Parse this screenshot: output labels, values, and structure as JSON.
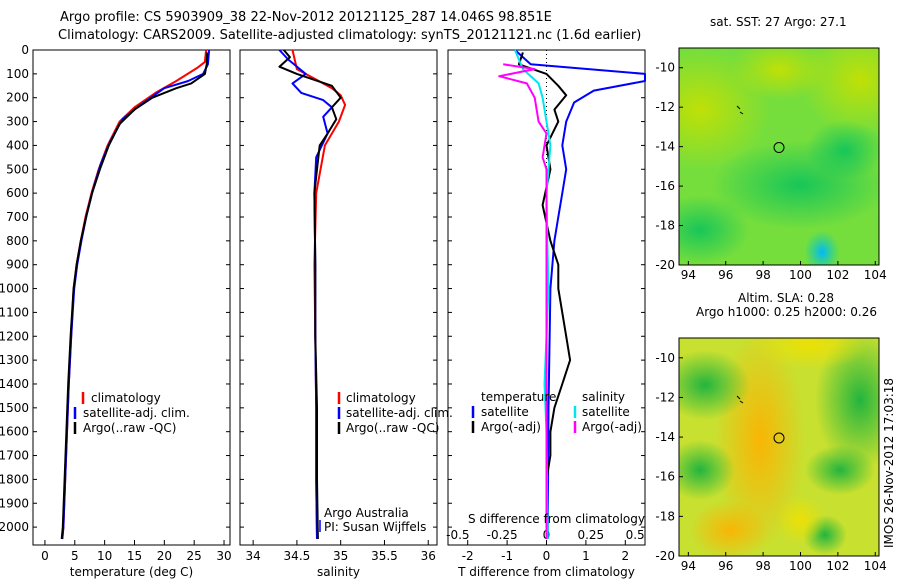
{
  "header": {
    "line1": "Argo profile: CS 5903909_38 22-Nov-2012 20121125_287 14.046S 98.851E",
    "line2": "Climatology: CARS2009. Satellite-adjusted climatology: synTS_20121121.nc (1.6d earlier)"
  },
  "colors": {
    "climatology": "#ff0000",
    "satellite": "#0000ff",
    "argo": "#000000",
    "sat_s": "#00e5ee",
    "argo_s": "#ff00ff"
  },
  "chart_data": [
    {
      "type": "line",
      "name": "temperature-profile",
      "xlabel": "temperature (deg C)",
      "ylabel": "depth",
      "xlim": [
        -2,
        31
      ],
      "ylim": [
        2075,
        0
      ],
      "xticks": [
        0,
        5,
        10,
        15,
        20,
        25,
        30
      ],
      "yticks": [
        0,
        100,
        200,
        300,
        400,
        500,
        600,
        700,
        800,
        900,
        1000,
        1100,
        1200,
        1300,
        1400,
        1500,
        1600,
        1700,
        1800,
        1900,
        2000
      ],
      "legend": [
        "climatology",
        "satellite-adj. clim.",
        "Argo(..raw -QC)"
      ],
      "series": [
        {
          "name": "climatology",
          "color_key": "climatology",
          "points": [
            [
              27,
              0
            ],
            [
              26.8,
              50
            ],
            [
              25.5,
              75
            ],
            [
              22,
              130
            ],
            [
              18.5,
              180
            ],
            [
              15,
              240
            ],
            [
              12.5,
              300
            ],
            [
              10.5,
              400
            ],
            [
              9,
              500
            ],
            [
              7.8,
              600
            ],
            [
              6.8,
              700
            ],
            [
              6,
              800
            ],
            [
              5.3,
              900
            ],
            [
              4.8,
              1000
            ],
            [
              4.4,
              1200
            ],
            [
              4,
              1400
            ],
            [
              3.7,
              1600
            ],
            [
              3.4,
              1800
            ],
            [
              3.1,
              2000
            ],
            [
              2.9,
              2050
            ]
          ]
        },
        {
          "name": "satellite-adj. clim.",
          "color_key": "satellite",
          "points": [
            [
              27.5,
              0
            ],
            [
              27.3,
              60
            ],
            [
              26.5,
              100
            ],
            [
              24,
              130
            ],
            [
              20,
              160
            ],
            [
              16,
              230
            ],
            [
              13,
              290
            ],
            [
              11,
              380
            ],
            [
              9.3,
              480
            ],
            [
              8,
              590
            ],
            [
              7,
              690
            ],
            [
              6.1,
              800
            ],
            [
              5.4,
              900
            ],
            [
              4.9,
              1000
            ],
            [
              4.4,
              1200
            ],
            [
              4,
              1400
            ],
            [
              3.7,
              1600
            ],
            [
              3.4,
              1800
            ],
            [
              3.1,
              2000
            ],
            [
              2.9,
              2050
            ]
          ]
        },
        {
          "name": "Argo(..raw -QC)",
          "color_key": "argo",
          "points": [
            [
              27.2,
              10
            ],
            [
              27.1,
              60
            ],
            [
              26.8,
              100
            ],
            [
              24.5,
              140
            ],
            [
              22,
              160
            ],
            [
              18,
              200
            ],
            [
              15,
              250
            ],
            [
              12.5,
              310
            ],
            [
              10.7,
              400
            ],
            [
              9.2,
              500
            ],
            [
              7.9,
              600
            ],
            [
              6.9,
              700
            ],
            [
              6,
              800
            ],
            [
              5.3,
              900
            ],
            [
              4.8,
              1000
            ],
            [
              4.3,
              1200
            ],
            [
              3.9,
              1400
            ],
            [
              3.6,
              1600
            ],
            [
              3.3,
              1800
            ],
            [
              3,
              2000
            ],
            [
              2.8,
              2050
            ]
          ]
        }
      ]
    },
    {
      "type": "line",
      "name": "salinity-profile",
      "xlabel": "salinity",
      "xlim": [
        33.85,
        36.1
      ],
      "ylim": [
        2075,
        0
      ],
      "xticks": [
        34,
        34.5,
        35,
        35.5,
        36
      ],
      "legend": [
        "climatology",
        "satellite-adj. clim.",
        "Argo(..raw -QC)"
      ],
      "credit": [
        "Argo Australia",
        "PI: Susan Wijffels"
      ],
      "series": [
        {
          "name": "climatology",
          "color_key": "climatology",
          "points": [
            [
              34.45,
              0
            ],
            [
              34.5,
              80
            ],
            [
              34.75,
              130
            ],
            [
              34.9,
              160
            ],
            [
              35,
              190
            ],
            [
              35.05,
              230
            ],
            [
              34.98,
              300
            ],
            [
              34.82,
              400
            ],
            [
              34.72,
              600
            ],
            [
              34.7,
              900
            ],
            [
              34.71,
              1200
            ],
            [
              34.72,
              1500
            ],
            [
              34.72,
              1800
            ],
            [
              34.73,
              2050
            ]
          ]
        },
        {
          "name": "satellite-adj. clim.",
          "color_key": "satellite",
          "points": [
            [
              34.3,
              0
            ],
            [
              34.4,
              40
            ],
            [
              34.6,
              100
            ],
            [
              34.45,
              140
            ],
            [
              34.55,
              180
            ],
            [
              34.8,
              210
            ],
            [
              34.9,
              240
            ],
            [
              34.8,
              280
            ],
            [
              34.85,
              350
            ],
            [
              34.72,
              450
            ],
            [
              34.7,
              600
            ],
            [
              34.71,
              900
            ],
            [
              34.71,
              1200
            ],
            [
              34.72,
              1500
            ],
            [
              34.72,
              1800
            ],
            [
              34.73,
              2050
            ]
          ]
        },
        {
          "name": "Argo(..raw -QC)",
          "color_key": "argo",
          "points": [
            [
              34.35,
              0
            ],
            [
              34.42,
              30
            ],
            [
              34.3,
              70
            ],
            [
              34.5,
              100
            ],
            [
              34.9,
              150
            ],
            [
              35,
              200
            ],
            [
              34.9,
              240
            ],
            [
              34.95,
              290
            ],
            [
              34.85,
              350
            ],
            [
              34.76,
              400
            ],
            [
              34.73,
              500
            ],
            [
              34.7,
              600
            ],
            [
              34.71,
              900
            ],
            [
              34.71,
              1200
            ],
            [
              34.73,
              1500
            ],
            [
              34.73,
              1800
            ],
            [
              34.74,
              2050
            ]
          ]
        }
      ]
    },
    {
      "type": "line",
      "name": "difference-profile",
      "xlabel": "T difference from climatology",
      "xlabel_top": "S difference from climatology",
      "xlim": [
        -2.5,
        2.5
      ],
      "ylim": [
        2075,
        0
      ],
      "xticks": [
        -2,
        -1,
        0,
        1,
        2
      ],
      "s_ticks": [
        "-0.5",
        "-0.25",
        "0",
        "0.25",
        "0.5"
      ],
      "legend_left_title": "temperature",
      "legend_right_title": "salinity",
      "legend_left": [
        "satellite",
        "Argo(-adj)"
      ],
      "legend_right": [
        "satellite",
        "Argo(-adj)"
      ],
      "series": [
        {
          "name": "temperature satellite",
          "color_key": "satellite",
          "points": [
            [
              -0.8,
              0
            ],
            [
              -0.4,
              60
            ],
            [
              2.5,
              100
            ],
            [
              2.5,
              130
            ],
            [
              1.2,
              170
            ],
            [
              0.7,
              220
            ],
            [
              0.5,
              300
            ],
            [
              0.4,
              400
            ],
            [
              0.5,
              500
            ],
            [
              0.4,
              600
            ],
            [
              0.3,
              700
            ],
            [
              0.2,
              800
            ],
            [
              0.1,
              1000
            ],
            [
              0.05,
              1500
            ],
            [
              0.03,
              2050
            ]
          ]
        },
        {
          "name": "temperature Argo(-adj)",
          "color_key": "argo",
          "points": [
            [
              -0.6,
              10
            ],
            [
              -0.7,
              60
            ],
            [
              0,
              100
            ],
            [
              0.3,
              150
            ],
            [
              0.5,
              190
            ],
            [
              0.2,
              250
            ],
            [
              0.3,
              300
            ],
            [
              0,
              400
            ],
            [
              0.1,
              500
            ],
            [
              -0.1,
              650
            ],
            [
              0.1,
              800
            ],
            [
              0.3,
              900
            ],
            [
              0.3,
              1000
            ],
            [
              0.5,
              1200
            ],
            [
              0.6,
              1300
            ],
            [
              0.4,
              1400
            ],
            [
              0.2,
              1500
            ],
            [
              0.1,
              1600
            ],
            [
              0.1,
              1700
            ],
            [
              0,
              1800
            ],
            [
              0,
              1900
            ],
            [
              0,
              2050
            ]
          ]
        },
        {
          "name": "salinity satellite",
          "color_key": "sat_s",
          "points": [
            [
              -0.8,
              0
            ],
            [
              -0.6,
              80
            ],
            [
              -0.2,
              140
            ],
            [
              -0.1,
              200
            ],
            [
              0,
              300
            ],
            [
              0.1,
              400
            ],
            [
              0.05,
              500
            ],
            [
              0,
              600
            ],
            [
              0.02,
              800
            ],
            [
              0.05,
              1000
            ],
            [
              0,
              1200
            ],
            [
              -0.05,
              1400
            ],
            [
              0,
              1600
            ],
            [
              0.03,
              2050
            ]
          ]
        },
        {
          "name": "salinity Argo(-adj)",
          "color_key": "argo_s",
          "points": [
            [
              -1.1,
              60
            ],
            [
              -0.3,
              80
            ],
            [
              -1.2,
              110
            ],
            [
              -0.5,
              140
            ],
            [
              -0.3,
              200
            ],
            [
              -0.2,
              300
            ],
            [
              0,
              350
            ],
            [
              -0.1,
              450
            ],
            [
              0,
              500
            ],
            [
              0,
              600
            ],
            [
              0,
              800
            ],
            [
              0,
              1200
            ],
            [
              0,
              1600
            ],
            [
              0,
              2050
            ]
          ]
        }
      ]
    },
    {
      "type": "heatmap",
      "name": "sst-map",
      "title": "sat. SST: 27 Argo: 27.1",
      "xlim": [
        93.5,
        104.2
      ],
      "ylim": [
        -20,
        -9
      ],
      "xticks": [
        94,
        96,
        98,
        100,
        102,
        104
      ],
      "yticks": [
        -10,
        -12,
        -14,
        -16,
        -18,
        -20
      ],
      "float_position": [
        98.851,
        -14.046
      ]
    },
    {
      "type": "heatmap",
      "name": "sla-map",
      "title_line1": "Altim. SLA: 0.28",
      "title_line2": "Argo h1000: 0.25 h2000: 0.26",
      "xlim": [
        93.5,
        104.2
      ],
      "ylim": [
        -20,
        -9
      ],
      "xticks": [
        94,
        96,
        98,
        100,
        102,
        104
      ],
      "yticks": [
        -10,
        -12,
        -14,
        -16,
        -18,
        -20
      ],
      "float_position": [
        98.851,
        -14.046
      ]
    }
  ],
  "watermark": "IMOS 26-Nov-2012 17:03:18"
}
